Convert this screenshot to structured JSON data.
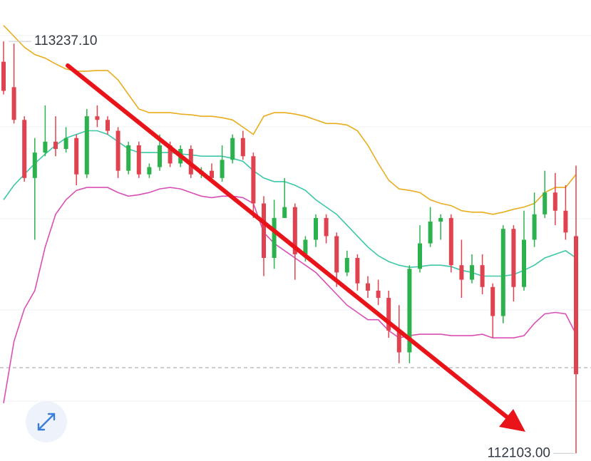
{
  "chart_data": {
    "type": "candlestick",
    "ylim": [
      112082,
      113351
    ],
    "up_color": "#2bb24c",
    "down_color": "#e0424f",
    "open": [
      113181,
      113111,
      113021,
      112861,
      112931,
      112961,
      112941,
      112971,
      112871,
      113031,
      113021,
      112991,
      112881,
      112951,
      112871,
      112891,
      112951,
      112901,
      112941,
      112871,
      112881,
      112861,
      112911,
      112971,
      112921,
      112791,
      112641,
      112751,
      112781,
      112651,
      112691,
      112751,
      112701,
      112601,
      112641,
      112571,
      112551,
      112531,
      112441,
      112381,
      112611,
      112681,
      112741,
      112751,
      112621,
      112581,
      112621,
      112561,
      112481,
      112721,
      112561,
      112691,
      112761,
      112821,
      112771,
      112701
    ],
    "high": [
      113237.1,
      113231,
      113031,
      112971,
      113061,
      113031,
      113001,
      112981,
      113051,
      113061,
      113031,
      113001,
      112961,
      112961,
      112901,
      112981,
      112961,
      112951,
      112951,
      112891,
      112901,
      112951,
      112981,
      112991,
      112931,
      112811,
      112801,
      112861,
      112791,
      112701,
      112761,
      112761,
      112711,
      112661,
      112651,
      112591,
      112581,
      112551,
      112511,
      112621,
      112731,
      112781,
      112761,
      112761,
      112691,
      112651,
      112651,
      112571,
      112731,
      112731,
      112771,
      112821,
      112881,
      112875,
      112841,
      112895
    ],
    "low": [
      113091,
      113011,
      112851,
      112691,
      112921,
      112921,
      112931,
      112841,
      112861,
      113001,
      112981,
      112861,
      112871,
      112861,
      112861,
      112881,
      112891,
      112891,
      112861,
      112861,
      112851,
      112851,
      112901,
      112911,
      112751,
      112591,
      112611,
      112751,
      112581,
      112631,
      112671,
      112681,
      112561,
      112591,
      112551,
      112531,
      112511,
      112421,
      112351,
      112351,
      112601,
      112671,
      112691,
      112601,
      112531,
      112571,
      112541,
      112421,
      112461,
      112521,
      112551,
      112671,
      112751,
      112731,
      112691,
      112103
    ],
    "close": [
      113101,
      113021,
      112861,
      112931,
      112961,
      112941,
      112971,
      112871,
      113031,
      113021,
      112991,
      112881,
      112951,
      112871,
      112891,
      112951,
      112901,
      112941,
      112871,
      112881,
      112861,
      112911,
      112971,
      112921,
      112791,
      112641,
      112751,
      112781,
      112651,
      112691,
      112751,
      112701,
      112601,
      112641,
      112571,
      112551,
      112531,
      112441,
      112381,
      112611,
      112681,
      112741,
      112751,
      112621,
      112581,
      112621,
      112561,
      112481,
      112721,
      112561,
      112691,
      112761,
      112821,
      112771,
      112711,
      112321
    ],
    "bands": [
      {
        "color": "#e9ad1d",
        "values": [
          113281,
          113251,
          113221,
          113201,
          113191,
          113175,
          113161,
          113155,
          113155,
          113157,
          113157,
          113131,
          113091,
          113051,
          113041,
          113041,
          113041,
          113037,
          113035,
          113031,
          113031,
          113027,
          113021,
          113001,
          112981,
          113031,
          113041,
          113041,
          113037,
          113031,
          113021,
          113011,
          113011,
          113007,
          112991,
          112951,
          112901,
          112855,
          112831,
          112827,
          112821,
          112801,
          112791,
          112785,
          112771,
          112767,
          112767,
          112761,
          112767,
          112775,
          112781,
          112791,
          112821,
          112835,
          112835,
          112871
        ]
      },
      {
        "color": "#3cc7a8",
        "values": [
          112801,
          112841,
          112871,
          112901,
          112927,
          112951,
          112971,
          112981,
          112991,
          112991,
          112981,
          112961,
          112941,
          112931,
          112931,
          112931,
          112931,
          112927,
          112925,
          112921,
          112921,
          112921,
          112915,
          112907,
          112881,
          112861,
          112851,
          112851,
          112841,
          112827,
          112801,
          112781,
          112761,
          112731,
          112701,
          112671,
          112647,
          112631,
          112621,
          112615,
          112617,
          112621,
          112621,
          112617,
          112607,
          112601,
          112591,
          112591,
          112591,
          112595,
          112607,
          112621,
          112641,
          112651,
          112661,
          112641
        ]
      },
      {
        "color": "#d94fb5",
        "values": [
          112241,
          112411,
          112501,
          112551,
          112671,
          112761,
          112801,
          112827,
          112835,
          112835,
          112835,
          112821,
          112811,
          112815,
          112821,
          112831,
          112835,
          112831,
          112821,
          112811,
          112807,
          112811,
          112811,
          112807,
          112791,
          112711,
          112681,
          112661,
          112641,
          112621,
          112601,
          112571,
          112541,
          112511,
          112491,
          112471,
          112471,
          112441,
          112421,
          112427,
          112431,
          112431,
          112431,
          112427,
          112427,
          112427,
          112431,
          112421,
          112421,
          112421,
          112427,
          112461,
          112487,
          112491,
          112487,
          112431
        ]
      }
    ],
    "price_line": 112339,
    "annotations": [
      {
        "value": 113237.1,
        "label": "113237.10"
      },
      {
        "value": 112103,
        "label": "112103.00"
      }
    ]
  }
}
